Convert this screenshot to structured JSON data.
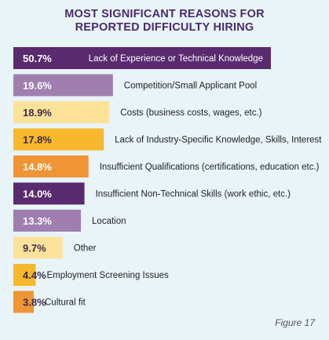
{
  "title_lines": [
    "MOST SIGNIFICANT REASONS FOR",
    "REPORTED DIFFICULTY HIRING"
  ],
  "figure_label": "Figure 17",
  "chart_data": {
    "type": "bar",
    "orientation": "horizontal",
    "title": "MOST SIGNIFICANT REASONS FOR REPORTED DIFFICULTY HIRING",
    "categories": [
      "Lack of Experience or Technical Knowledge",
      "Competition/Small Applicant Pool",
      "Costs (business costs, wages, etc.)",
      "Lack of Industry-Specific Knowledge, Skills, Interest",
      "Insufficient Qualifications (certifications, education etc.)",
      "Insufficient Non-Technical Skills (work ethic, etc.)",
      "Location",
      "Other",
      "Employment Screening Issues",
      "Cultural fit"
    ],
    "values": [
      50.7,
      19.6,
      18.9,
      17.8,
      14.8,
      14.0,
      13.3,
      9.7,
      4.4,
      3.8
    ],
    "value_labels": [
      "50.7%",
      "19.6%",
      "18.9%",
      "17.8%",
      "14.8%",
      "14.0%",
      "13.3%",
      "9.7%",
      "4.4%",
      "3.8%"
    ],
    "colors": [
      "#5a2a6e",
      "#a07fb0",
      "#fde29a",
      "#f7b82d",
      "#ef9535",
      "#5a2a6e",
      "#a07fb0",
      "#fde29a",
      "#f7b82d",
      "#ef9535"
    ],
    "label_colors": [
      "#ffffff",
      "#ffffff",
      "#3a2a4a",
      "#3a2a4a",
      "#ffffff",
      "#ffffff",
      "#ffffff",
      "#3a2a4a",
      "#3a2a4a",
      "#3a2a4a"
    ],
    "xlim": [
      0,
      50.7
    ],
    "grid": false,
    "legend": "none"
  }
}
